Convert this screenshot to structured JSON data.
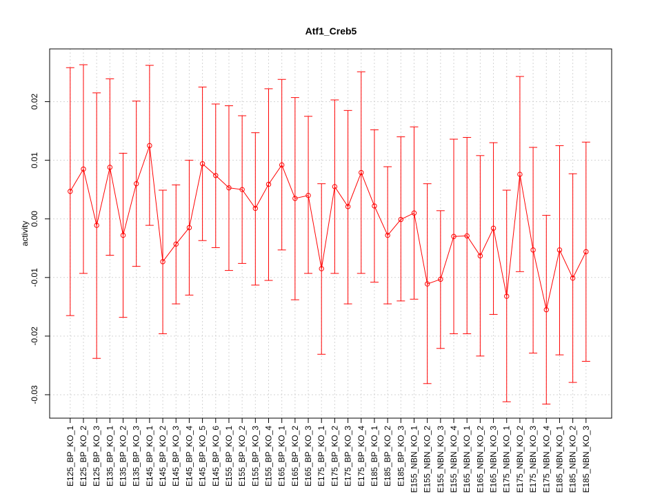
{
  "chart_data": {
    "type": "line",
    "title": "Atf1_Creb5",
    "xlabel": "",
    "ylabel": "activity",
    "ylim": [
      -0.034,
      0.029
    ],
    "yticks": [
      -0.03,
      -0.02,
      -0.01,
      0.0,
      0.01,
      0.02
    ],
    "ytick_labels": [
      "-0.03",
      "-0.02",
      "-0.01",
      "0.00",
      "0.01",
      "0.02"
    ],
    "grid": true,
    "color": "#ff0000",
    "categories": [
      "E125_BP_KO_1",
      "E125_BP_KO_2",
      "E125_BP_KO_3",
      "E135_BP_KO_1",
      "E135_BP_KO_2",
      "E135_BP_KO_3",
      "E145_BP_KO_1",
      "E145_BP_KO_2",
      "E145_BP_KO_3",
      "E145_BP_KO_4",
      "E145_BP_KO_5",
      "E145_BP_KO_6",
      "E155_BP_KO_1",
      "E155_BP_KO_2",
      "E155_BP_KO_3",
      "E155_BP_KO_4",
      "E165_BP_KO_1",
      "E165_BP_KO_2",
      "E165_BP_KO_3",
      "E175_BP_KO_1",
      "E175_BP_KO_2",
      "E175_BP_KO_3",
      "E175_BP_KO_4",
      "E185_BP_KO_1",
      "E185_BP_KO_2",
      "E185_BP_KO_3",
      "E155_NBN_KO_1",
      "E155_NBN_KO_2",
      "E155_NBN_KO_3",
      "E155_NBN_KO_4",
      "E165_NBN_KO_1",
      "E165_NBN_KO_2",
      "E165_NBN_KO_3",
      "E175_NBN_KO_1",
      "E175_NBN_KO_2",
      "E175_NBN_KO_3",
      "E175_NBN_KO_4",
      "E185_NBN_KO_1",
      "E185_NBN_KO_2",
      "E185_NBN_KO_3"
    ],
    "values": [
      0.0047,
      0.0085,
      -0.0011,
      0.0088,
      -0.0028,
      0.006,
      0.0125,
      -0.0073,
      -0.0043,
      -0.0015,
      0.0094,
      0.0074,
      0.0053,
      0.005,
      0.0018,
      0.0059,
      0.0092,
      0.0035,
      0.004,
      -0.0085,
      0.0055,
      0.0021,
      0.0079,
      0.0022,
      -0.0028,
      -0.0001,
      0.001,
      -0.0111,
      -0.0103,
      -0.003,
      -0.0029,
      -0.0063,
      -0.0016,
      -0.0132,
      0.0076,
      -0.0053,
      -0.0155,
      -0.0053,
      -0.0101,
      -0.0056
    ],
    "upper": [
      0.0258,
      0.0263,
      0.0215,
      0.0239,
      0.0112,
      0.0201,
      0.0262,
      0.0049,
      0.0058,
      0.01,
      0.0225,
      0.0196,
      0.0193,
      0.0176,
      0.0147,
      0.0222,
      0.0238,
      0.0207,
      0.0175,
      0.006,
      0.0203,
      0.0185,
      0.0251,
      0.0152,
      0.0089,
      0.014,
      0.0157,
      0.006,
      0.0014,
      0.0136,
      0.0139,
      0.0108,
      0.013,
      0.0049,
      0.0243,
      0.0122,
      0.0006,
      0.0125,
      0.0077,
      0.0131
    ],
    "lower": [
      -0.0165,
      -0.0093,
      -0.0238,
      -0.0062,
      -0.0168,
      -0.0081,
      -0.0011,
      -0.0196,
      -0.0145,
      -0.013,
      -0.0037,
      -0.0049,
      -0.0088,
      -0.0076,
      -0.0113,
      -0.0105,
      -0.0053,
      -0.0138,
      -0.0093,
      -0.0231,
      -0.0093,
      -0.0145,
      -0.0093,
      -0.0108,
      -0.0145,
      -0.014,
      -0.0137,
      -0.0281,
      -0.0221,
      -0.0196,
      -0.0196,
      -0.0234,
      -0.0163,
      -0.0312,
      -0.009,
      -0.0229,
      -0.0316,
      -0.0232,
      -0.0279,
      -0.0243
    ]
  }
}
